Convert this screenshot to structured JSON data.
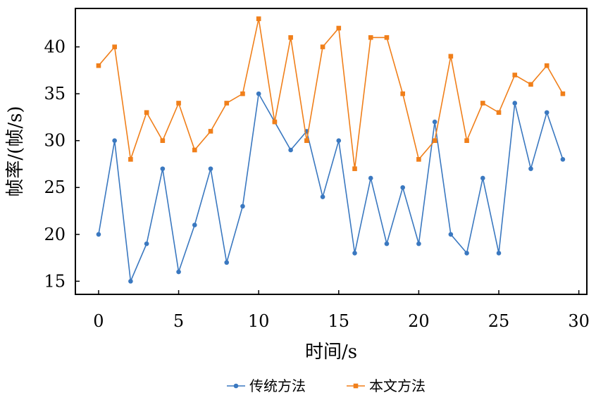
{
  "chart_data": {
    "type": "line",
    "title": "",
    "xlabel": "时间/s",
    "ylabel": "帧率/(帧/s)",
    "xlim": [
      -1.45,
      30.5
    ],
    "ylim": [
      13.6,
      44.1
    ],
    "xticks": [
      0,
      5,
      10,
      15,
      20,
      25,
      30
    ],
    "yticks": [
      15,
      20,
      25,
      30,
      35,
      40
    ],
    "grid": false,
    "legend_position": "bottom-center",
    "x": [
      0,
      1,
      2,
      3,
      4,
      5,
      6,
      7,
      8,
      9,
      10,
      11,
      12,
      13,
      14,
      15,
      16,
      17,
      18,
      19,
      20,
      21,
      22,
      23,
      24,
      25,
      26,
      27,
      28,
      29
    ],
    "series": [
      {
        "name": "传统方法",
        "color": "#3a78c0",
        "marker": "circle",
        "values": [
          20,
          30,
          15,
          19,
          27,
          16,
          21,
          27,
          17,
          23,
          35,
          32,
          29,
          31,
          24,
          30,
          18,
          26,
          19,
          25,
          19,
          32,
          20,
          18,
          26,
          18,
          34,
          27,
          33,
          28
        ]
      },
      {
        "name": "本文方法",
        "color": "#f07f1a",
        "marker": "square",
        "values": [
          38,
          40,
          28,
          33,
          30,
          34,
          29,
          31,
          34,
          35,
          43,
          32,
          41,
          30,
          40,
          42,
          27,
          41,
          41,
          35,
          28,
          30,
          39,
          30,
          34,
          33,
          37,
          36,
          38,
          35
        ]
      }
    ]
  }
}
